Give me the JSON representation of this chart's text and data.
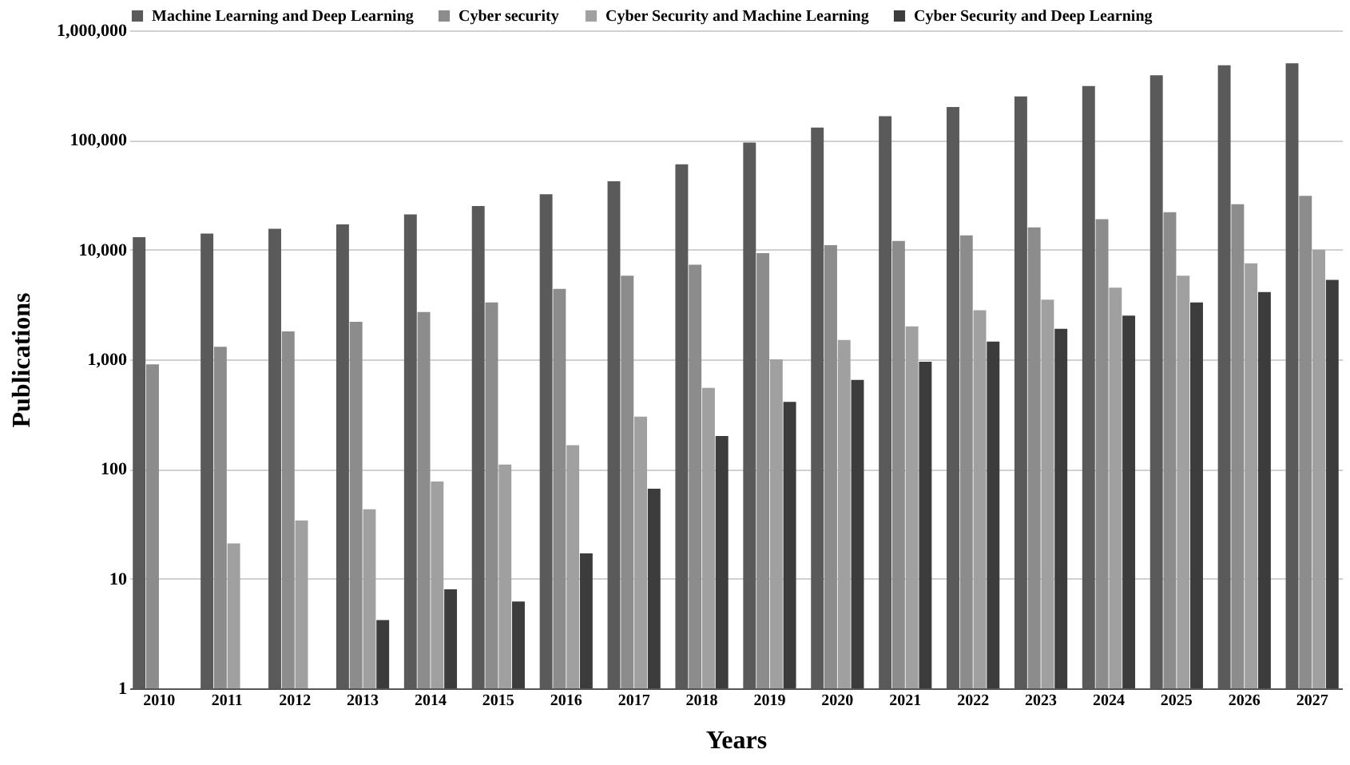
{
  "chart_data": {
    "type": "bar",
    "xlabel": "Years",
    "ylabel": "Publications",
    "categories": [
      "2010",
      "2011",
      "2012",
      "2013",
      "2014",
      "2015",
      "2016",
      "2017",
      "2018",
      "2019",
      "2020",
      "2021",
      "2022",
      "2023",
      "2024",
      "2025",
      "2026",
      "2027"
    ],
    "series": [
      {
        "name": "Machine Learning and Deep Learning",
        "color": "#5a5a5a",
        "values": [
          13000,
          14000,
          15500,
          17000,
          21000,
          25000,
          32000,
          42000,
          60000,
          95000,
          130000,
          165000,
          200000,
          250000,
          310000,
          390000,
          480000,
          500000
        ]
      },
      {
        "name": "Cyber security",
        "color": "#8c8c8c",
        "values": [
          900,
          1300,
          1800,
          2200,
          2700,
          3300,
          4400,
          5800,
          7300,
          9300,
          11000,
          12000,
          13500,
          16000,
          19000,
          22000,
          26000,
          31000
        ]
      },
      {
        "name": "Cyber Security and Machine Learning",
        "color": "#a0a0a0",
        "values": [
          null,
          21,
          34,
          43,
          77,
          110,
          165,
          300,
          550,
          1000,
          1500,
          2000,
          2800,
          3500,
          4500,
          5800,
          7500,
          10000
        ]
      },
      {
        "name": "Cyber Security and Deep Learning",
        "color": "#3c3c3c",
        "values": [
          null,
          null,
          null,
          4.2,
          8,
          6.2,
          17,
          66,
          200,
          410,
          650,
          950,
          1450,
          1900,
          2500,
          3300,
          4100,
          5300
        ]
      }
    ],
    "log": true,
    "ylim": [
      1,
      1000000
    ],
    "yticks": [
      1,
      10,
      100,
      {
        "value": 1000,
        "label": "1,000"
      },
      {
        "value": 10000,
        "label": "10,000"
      },
      {
        "value": 100000,
        "label": "100,000"
      },
      {
        "value": 1000000,
        "label": "1,000,000"
      }
    ],
    "grid": "y",
    "legend": "top"
  }
}
